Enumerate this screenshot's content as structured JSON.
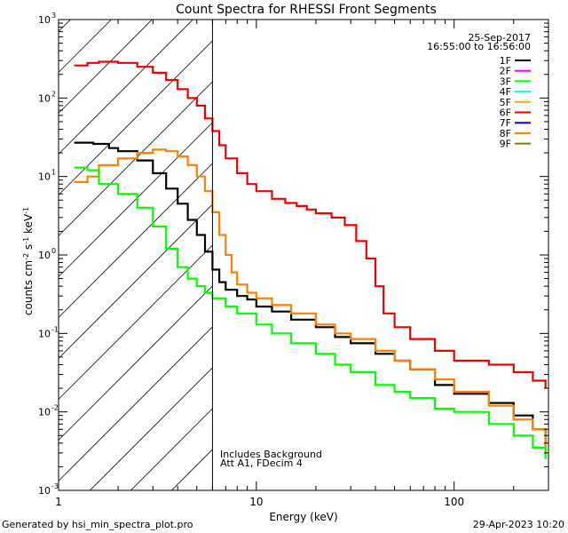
{
  "chart_data": {
    "type": "line",
    "title": "Count Spectra for RHESSI Front Segments",
    "xlabel": "Energy (keV)",
    "ylabel": "counts cm-2 s-1 keV-1",
    "xscale": "log",
    "yscale": "log",
    "xlim": [
      1,
      300
    ],
    "ylim": [
      0.001,
      1000
    ],
    "x_ticks": [
      {
        "value": 1,
        "label": "1"
      },
      {
        "value": 10,
        "label": "10"
      },
      {
        "value": 100,
        "label": "100"
      }
    ],
    "y_ticks": [
      {
        "value": 0.001,
        "base": "10",
        "exp": "-3"
      },
      {
        "value": 0.01,
        "base": "10",
        "exp": "-2"
      },
      {
        "value": 0.1,
        "base": "10",
        "exp": "-1"
      },
      {
        "value": 1,
        "base": "10",
        "exp": "0"
      },
      {
        "value": 10,
        "base": "10",
        "exp": "1"
      },
      {
        "value": 100,
        "base": "10",
        "exp": "2"
      },
      {
        "value": 1000,
        "base": "10",
        "exp": "3"
      }
    ],
    "date": "25-Sep-2017",
    "time_range": "16:55:00 to 16:56:00",
    "hatched_region_max_kev": 6,
    "annotations": [
      "Includes Background",
      "Att A1, FDecim  4"
    ],
    "legend": [
      {
        "label": "1F",
        "color": "#000000"
      },
      {
        "label": "2F",
        "color": "#ff00ff"
      },
      {
        "label": "3F",
        "color": "#00ff00"
      },
      {
        "label": "4F",
        "color": "#00ffff"
      },
      {
        "label": "5F",
        "color": "#ffb000"
      },
      {
        "label": "6F",
        "color": "#ee0000"
      },
      {
        "label": "7F",
        "color": "#0000ff"
      },
      {
        "label": "8F",
        "color": "#ff7f00"
      },
      {
        "label": "9F",
        "color": "#808000"
      }
    ],
    "series": [
      {
        "name": "6F",
        "color": "#ee0000",
        "points": [
          [
            1.2,
            260
          ],
          [
            1.4,
            280
          ],
          [
            1.6,
            290
          ],
          [
            2,
            280
          ],
          [
            2.5,
            250
          ],
          [
            3,
            210
          ],
          [
            3.5,
            170
          ],
          [
            4,
            130
          ],
          [
            4.5,
            100
          ],
          [
            5,
            80
          ],
          [
            5.5,
            55
          ],
          [
            6,
            38
          ],
          [
            6.5,
            25
          ],
          [
            7,
            17
          ],
          [
            8,
            11
          ],
          [
            9,
            8
          ],
          [
            10,
            6.5
          ],
          [
            12,
            5.2
          ],
          [
            14,
            4.6
          ],
          [
            16,
            4.2
          ],
          [
            18,
            3.8
          ],
          [
            20,
            3.4
          ],
          [
            24,
            3
          ],
          [
            28,
            2.4
          ],
          [
            32,
            1.5
          ],
          [
            36,
            0.9
          ],
          [
            40,
            0.4
          ],
          [
            44,
            0.18
          ],
          [
            50,
            0.12
          ],
          [
            60,
            0.085
          ],
          [
            80,
            0.06
          ],
          [
            100,
            0.045
          ],
          [
            150,
            0.04
          ],
          [
            200,
            0.032
          ],
          [
            250,
            0.025
          ],
          [
            290,
            0.02
          ]
        ]
      },
      {
        "name": "1F",
        "color": "#000000",
        "points": [
          [
            1.2,
            27
          ],
          [
            1.5,
            26
          ],
          [
            1.8,
            23
          ],
          [
            2,
            21
          ],
          [
            2.5,
            16
          ],
          [
            3,
            11
          ],
          [
            3.5,
            7
          ],
          [
            4,
            4.5
          ],
          [
            4.5,
            2.8
          ],
          [
            5,
            1.8
          ],
          [
            5.5,
            1.1
          ],
          [
            6,
            0.65
          ],
          [
            6.5,
            0.45
          ],
          [
            7,
            0.36
          ],
          [
            8,
            0.3
          ],
          [
            9,
            0.27
          ],
          [
            10,
            0.22
          ],
          [
            12,
            0.19
          ],
          [
            15,
            0.15
          ],
          [
            20,
            0.12
          ],
          [
            25,
            0.09
          ],
          [
            30,
            0.075
          ],
          [
            40,
            0.055
          ],
          [
            50,
            0.045
          ],
          [
            60,
            0.035
          ],
          [
            80,
            0.022
          ],
          [
            100,
            0.017
          ],
          [
            150,
            0.013
          ],
          [
            200,
            0.009
          ],
          [
            250,
            0.006
          ],
          [
            290,
            0.004
          ]
        ]
      },
      {
        "name": "8F",
        "color": "#ff7f00",
        "points": [
          [
            1.2,
            8.5
          ],
          [
            1.4,
            10
          ],
          [
            1.6,
            14
          ],
          [
            2,
            17
          ],
          [
            2.5,
            20
          ],
          [
            3,
            22
          ],
          [
            3.5,
            21
          ],
          [
            4,
            18
          ],
          [
            4.5,
            14
          ],
          [
            5,
            10
          ],
          [
            5.5,
            6.5
          ],
          [
            6,
            3.5
          ],
          [
            6.5,
            1.8
          ],
          [
            7,
            1
          ],
          [
            7.5,
            0.6
          ],
          [
            8,
            0.42
          ],
          [
            9,
            0.33
          ],
          [
            10,
            0.28
          ],
          [
            12,
            0.23
          ],
          [
            15,
            0.18
          ],
          [
            20,
            0.13
          ],
          [
            25,
            0.1
          ],
          [
            30,
            0.085
          ],
          [
            40,
            0.06
          ],
          [
            50,
            0.045
          ],
          [
            60,
            0.035
          ],
          [
            80,
            0.026
          ],
          [
            100,
            0.018
          ],
          [
            150,
            0.012
          ],
          [
            200,
            0.008
          ],
          [
            250,
            0.006
          ],
          [
            290,
            0.003
          ]
        ]
      },
      {
        "name": "3F",
        "color": "#00ff00",
        "points": [
          [
            1.2,
            13
          ],
          [
            1.4,
            12
          ],
          [
            1.6,
            8
          ],
          [
            2,
            6
          ],
          [
            2.5,
            4
          ],
          [
            3,
            2.3
          ],
          [
            3.5,
            1.2
          ],
          [
            4,
            0.7
          ],
          [
            4.5,
            0.5
          ],
          [
            5,
            0.4
          ],
          [
            5.5,
            0.33
          ],
          [
            6,
            0.28
          ],
          [
            7,
            0.22
          ],
          [
            8,
            0.18
          ],
          [
            10,
            0.13
          ],
          [
            12,
            0.1
          ],
          [
            15,
            0.075
          ],
          [
            20,
            0.055
          ],
          [
            25,
            0.04
          ],
          [
            30,
            0.032
          ],
          [
            40,
            0.022
          ],
          [
            50,
            0.018
          ],
          [
            60,
            0.015
          ],
          [
            80,
            0.011
          ],
          [
            100,
            0.01
          ],
          [
            150,
            0.007
          ],
          [
            200,
            0.005
          ],
          [
            250,
            0.0035
          ],
          [
            290,
            0.0025
          ]
        ]
      }
    ]
  },
  "footer": {
    "generated_by": "Generated by hsi_min_spectra_plot.pro",
    "timestamp": "29-Apr-2023 10:20"
  }
}
